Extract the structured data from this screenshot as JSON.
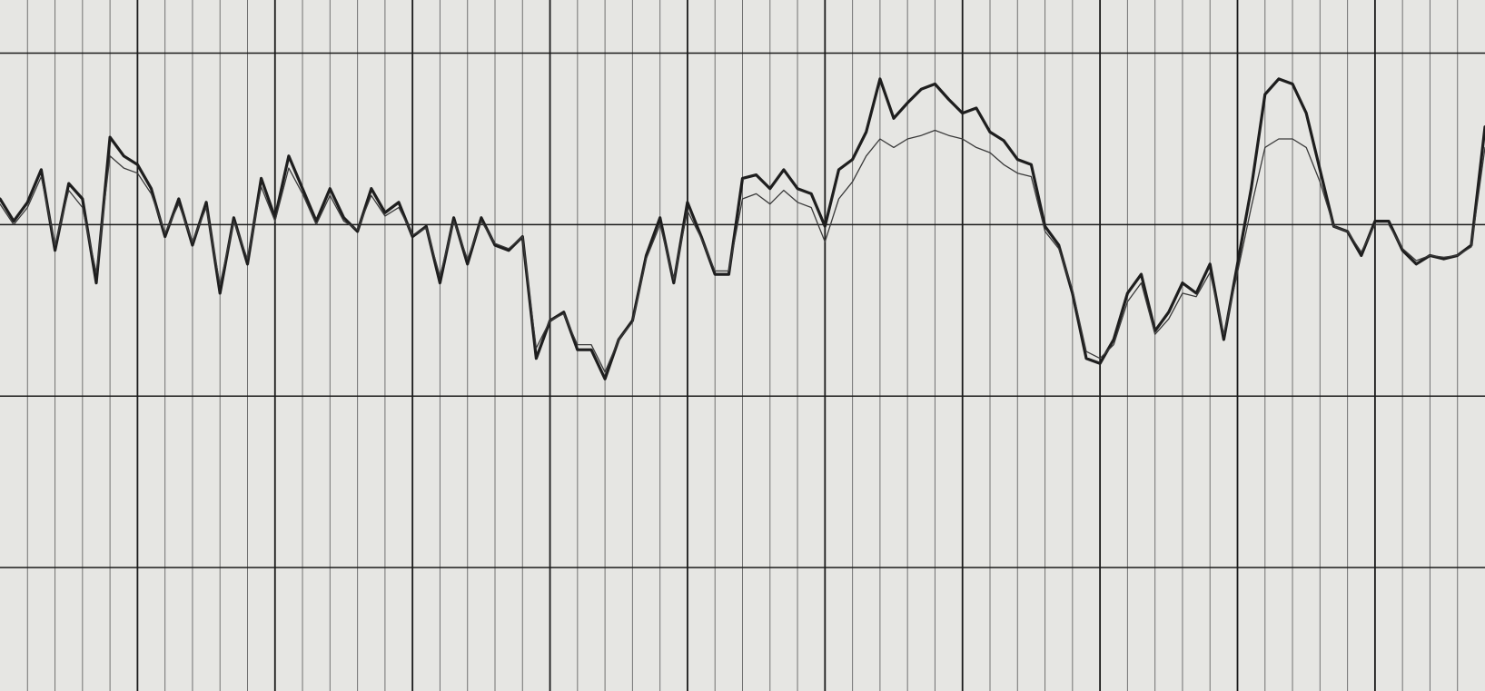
{
  "chart_data": {
    "type": "line",
    "xlim": [
      0,
      10.8
    ],
    "ylim": [
      -0.72,
      3.31
    ],
    "xticks": [
      1,
      2,
      3,
      4,
      5,
      6,
      7,
      8,
      9,
      10
    ],
    "xminorticks": [
      0.2,
      0.4,
      0.6,
      0.8,
      1.2,
      1.4,
      1.6,
      1.8,
      2.2,
      2.4,
      2.6,
      2.8,
      3.2,
      3.4,
      3.6,
      3.8,
      4.2,
      4.4,
      4.6,
      4.8,
      5.2,
      5.4,
      5.6,
      5.8,
      6.2,
      6.4,
      6.6,
      6.8,
      7.2,
      7.4,
      7.6,
      7.8,
      8.2,
      8.4,
      8.6,
      8.8,
      9.2,
      9.4,
      9.6,
      9.8,
      10.2,
      10.4,
      10.6
    ],
    "yticks": [
      0,
      1,
      2,
      3
    ],
    "grid": true,
    "x": [
      0.0,
      0.1,
      0.2,
      0.3,
      0.4,
      0.5,
      0.6,
      0.7,
      0.8,
      0.9,
      1.0,
      1.1,
      1.2,
      1.3,
      1.4,
      1.5,
      1.6,
      1.7,
      1.8,
      1.9,
      2.0,
      2.1,
      2.2,
      2.3,
      2.4,
      2.5,
      2.6,
      2.7,
      2.8,
      2.9,
      3.0,
      3.1,
      3.2,
      3.3,
      3.4,
      3.5,
      3.6,
      3.7,
      3.8,
      3.9,
      4.0,
      4.1,
      4.2,
      4.3,
      4.4,
      4.5,
      4.6,
      4.7,
      4.8,
      4.9,
      5.0,
      5.1,
      5.2,
      5.3,
      5.4,
      5.5,
      5.6,
      5.7,
      5.8,
      5.9,
      6.0,
      6.1,
      6.2,
      6.3,
      6.4,
      6.5,
      6.6,
      6.7,
      6.8,
      6.9,
      7.0,
      7.1,
      7.2,
      7.3,
      7.4,
      7.5,
      7.6,
      7.7,
      7.8,
      7.9,
      8.0,
      8.1,
      8.2,
      8.3,
      8.4,
      8.5,
      8.6,
      8.7,
      8.8,
      8.9,
      9.0,
      9.1,
      9.2,
      9.3,
      9.4,
      9.5,
      9.6,
      9.7,
      9.8,
      9.9,
      10.0,
      10.1,
      10.2,
      10.3,
      10.4,
      10.5,
      10.6,
      10.7,
      10.8
    ],
    "series": [
      {
        "color": "#1e1e1e",
        "stroke_width": 3.2,
        "values": [
          2.15,
          2.02,
          2.13,
          2.32,
          1.85,
          2.24,
          2.15,
          1.66,
          2.51,
          2.4,
          2.35,
          2.21,
          1.93,
          2.15,
          1.88,
          2.13,
          1.6,
          2.04,
          1.77,
          2.27,
          2.04,
          2.4,
          2.21,
          2.02,
          2.21,
          2.04,
          1.96,
          2.21,
          2.07,
          2.13,
          1.93,
          1.99,
          1.66,
          2.04,
          1.77,
          2.04,
          1.88,
          1.85,
          1.93,
          1.22,
          1.44,
          1.49,
          1.27,
          1.27,
          1.1,
          1.33,
          1.44,
          1.82,
          2.04,
          1.66,
          2.13,
          1.93,
          1.71,
          1.71,
          2.27,
          2.29,
          2.21,
          2.32,
          2.21,
          2.18,
          1.99,
          2.32,
          2.38,
          2.54,
          2.85,
          2.62,
          2.71,
          2.79,
          2.82,
          2.73,
          2.65,
          2.68,
          2.54,
          2.49,
          2.38,
          2.35,
          1.99,
          1.88,
          1.6,
          1.22,
          1.19,
          1.33,
          1.6,
          1.71,
          1.38,
          1.49,
          1.66,
          1.6,
          1.77,
          1.33,
          1.77,
          2.21,
          2.76,
          2.85,
          2.82,
          2.65,
          2.32,
          1.99,
          1.96,
          1.82,
          2.02,
          2.02,
          1.85,
          1.77,
          1.82,
          1.8,
          1.82,
          1.88,
          2.57
        ]
      },
      {
        "color": "#3a3a3a",
        "stroke_width": 1.3,
        "values": [
          2.12,
          2.0,
          2.1,
          2.28,
          1.88,
          2.2,
          2.1,
          1.72,
          2.4,
          2.33,
          2.3,
          2.18,
          1.95,
          2.12,
          1.9,
          2.1,
          1.65,
          2.02,
          1.8,
          2.22,
          2.02,
          2.33,
          2.18,
          2.0,
          2.17,
          2.02,
          1.97,
          2.17,
          2.05,
          2.1,
          1.94,
          1.98,
          1.7,
          2.02,
          1.8,
          2.02,
          1.89,
          1.86,
          1.93,
          1.28,
          1.44,
          1.48,
          1.3,
          1.3,
          1.14,
          1.33,
          1.43,
          1.8,
          2.0,
          1.68,
          2.08,
          1.92,
          1.73,
          1.73,
          2.15,
          2.18,
          2.12,
          2.2,
          2.13,
          2.1,
          1.9,
          2.15,
          2.25,
          2.4,
          2.5,
          2.45,
          2.5,
          2.52,
          2.55,
          2.52,
          2.5,
          2.45,
          2.42,
          2.35,
          2.3,
          2.28,
          1.96,
          1.86,
          1.62,
          1.26,
          1.22,
          1.3,
          1.55,
          1.66,
          1.36,
          1.45,
          1.6,
          1.58,
          1.72,
          1.36,
          1.72,
          2.1,
          2.45,
          2.5,
          2.5,
          2.45,
          2.25,
          1.99,
          1.96,
          1.84,
          2.0,
          2.0,
          1.86,
          1.79,
          1.82,
          1.81,
          1.82,
          1.87,
          2.45
        ]
      }
    ]
  }
}
